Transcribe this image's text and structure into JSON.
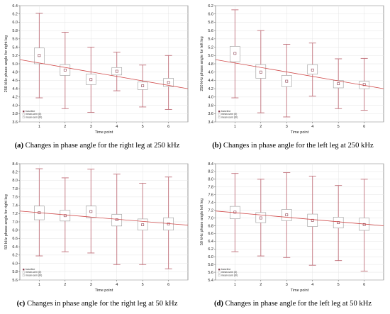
{
  "legend": {
    "items": [
      "baseline",
      "mean-sem (II)",
      "mean-sem (III)"
    ]
  },
  "chart_data": [
    {
      "id": "a",
      "type": "box",
      "caption_label": "(a)",
      "caption_text": "Changes in phase angle for the right leg at 250 kHz",
      "xlabel": "Time point",
      "ylabel": "250 kHz phase angle for right leg",
      "categories": [
        "1",
        "2",
        "3",
        "4",
        "5",
        "6"
      ],
      "yticks": [
        "3.6",
        "3.8",
        "4.0",
        "4.2",
        "4.4",
        "4.6",
        "4.8",
        "5.0",
        "5.2",
        "5.4",
        "5.6",
        "5.8",
        "6.0",
        "6.2",
        "6.4"
      ],
      "ylim": [
        3.6,
        6.4
      ],
      "mean": [
        5.2,
        4.85,
        4.62,
        4.82,
        4.47,
        4.55
      ],
      "box_low": [
        5.0,
        4.72,
        4.5,
        4.73,
        4.38,
        4.45
      ],
      "box_high": [
        5.38,
        4.98,
        4.75,
        4.91,
        4.56,
        4.65
      ],
      "whisker_low": [
        4.18,
        3.92,
        3.83,
        4.35,
        3.96,
        3.9
      ],
      "whisker_high": [
        6.22,
        5.76,
        5.4,
        5.28,
        4.97,
        5.2
      ],
      "trend": [
        5.1,
        4.4
      ]
    },
    {
      "id": "b",
      "type": "box",
      "caption_label": "(b)",
      "caption_text": "Changes in phase angle for the left leg at 250 kHz",
      "xlabel": "Time point",
      "ylabel": "250 kHz phase angle for left leg",
      "categories": [
        "1",
        "2",
        "3",
        "4",
        "5",
        "6"
      ],
      "yticks": [
        "3.4",
        "3.6",
        "3.8",
        "4.0",
        "4.2",
        "4.4",
        "4.6",
        "4.8",
        "5.0",
        "5.2",
        "5.4",
        "5.6",
        "5.8",
        "6.0",
        "6.2"
      ],
      "ylim": [
        3.4,
        6.2
      ],
      "mean": [
        5.05,
        4.6,
        4.38,
        4.65,
        4.32,
        4.3
      ],
      "box_low": [
        4.85,
        4.45,
        4.25,
        4.55,
        4.22,
        4.2
      ],
      "box_high": [
        5.22,
        4.78,
        4.52,
        4.78,
        4.4,
        4.38
      ],
      "whisker_low": [
        3.98,
        3.62,
        3.52,
        4.02,
        3.72,
        3.68
      ],
      "whisker_high": [
        6.1,
        5.6,
        5.27,
        5.3,
        4.92,
        4.93
      ],
      "trend": [
        4.9,
        4.2
      ]
    },
    {
      "id": "c",
      "type": "box",
      "caption_label": "(c)",
      "caption_text": "Changes in phase angle for the right leg at 50 kHz",
      "xlabel": "Time point",
      "ylabel": "50 kHz phase angle for right leg",
      "categories": [
        "1",
        "2",
        "3",
        "4",
        "5",
        "6"
      ],
      "yticks": [
        "5.6",
        "5.8",
        "6.0",
        "6.2",
        "6.4",
        "6.6",
        "6.8",
        "7.0",
        "7.2",
        "7.4",
        "7.6",
        "7.8",
        "8.0",
        "8.2",
        "8.4"
      ],
      "ylim": [
        5.6,
        8.4
      ],
      "mean": [
        7.22,
        7.15,
        7.25,
        7.05,
        6.93,
        6.95
      ],
      "box_low": [
        7.05,
        7.02,
        7.1,
        6.9,
        6.8,
        6.8
      ],
      "box_high": [
        7.38,
        7.28,
        7.38,
        7.18,
        7.07,
        7.1
      ],
      "whisker_low": [
        6.18,
        6.28,
        6.25,
        5.97,
        5.97,
        5.87
      ],
      "whisker_high": [
        8.28,
        8.06,
        8.27,
        8.15,
        7.93,
        8.08
      ],
      "trend": [
        7.26,
        6.92
      ]
    },
    {
      "id": "d",
      "type": "box",
      "caption_label": "(d)",
      "caption_text": "Changes in phase angle for the left leg at 50 kHz",
      "xlabel": "Time point",
      "ylabel": "50 kHz phase angle left leg",
      "categories": [
        "1",
        "2",
        "3",
        "4",
        "5",
        "6"
      ],
      "yticks": [
        "5.4",
        "5.6",
        "5.8",
        "6.0",
        "6.2",
        "6.4",
        "6.6",
        "6.8",
        "7.0",
        "7.2",
        "7.4",
        "7.6",
        "7.8",
        "8.0",
        "8.2",
        "8.4"
      ],
      "ylim": [
        5.4,
        8.4
      ],
      "mean": [
        7.15,
        7.0,
        7.08,
        6.94,
        6.88,
        6.83
      ],
      "box_low": [
        6.98,
        6.88,
        6.93,
        6.78,
        6.74,
        6.68
      ],
      "box_high": [
        7.3,
        7.14,
        7.22,
        7.1,
        7.02,
        7.0
      ],
      "whisker_low": [
        6.13,
        6.02,
        5.98,
        5.78,
        5.9,
        5.63
      ],
      "whisker_high": [
        8.15,
        8.0,
        8.17,
        8.08,
        7.84,
        8.0
      ],
      "trend": [
        7.18,
        6.8
      ]
    }
  ],
  "colors": {
    "whisker": "#c0707a",
    "trend": "#d04a4a",
    "mean_marker": "#8b4050",
    "box_edge": "#9a9a9a",
    "grid": "#e4e4e4"
  }
}
